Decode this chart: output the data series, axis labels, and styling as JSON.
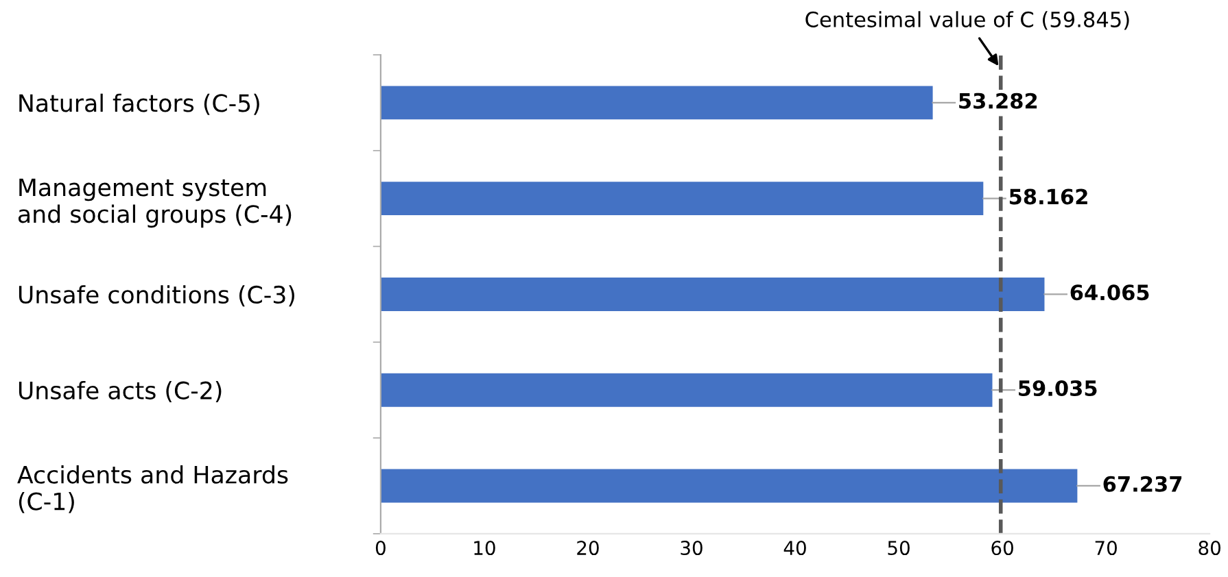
{
  "chart_data": {
    "type": "bar",
    "orientation": "horizontal",
    "categories": [
      "Natural factors (C-5)",
      "Management system\nand social groups (C-4)",
      "Unsafe conditions (C-3)",
      "Unsafe acts (C-2)",
      "Accidents and Hazards\n(C-1)"
    ],
    "values": [
      53.282,
      58.162,
      64.065,
      59.035,
      67.237
    ],
    "color": "#4472c4",
    "xlim": [
      0,
      80
    ],
    "xticks": [
      0,
      10,
      20,
      30,
      40,
      50,
      60,
      70,
      80
    ],
    "data_labels": true,
    "grid": false,
    "ref_lines": [
      {
        "axis": "x",
        "value": 59.845,
        "label": "Centesimal value of C (59.845)",
        "color": "#595959",
        "line_style": "dashed"
      }
    ]
  }
}
